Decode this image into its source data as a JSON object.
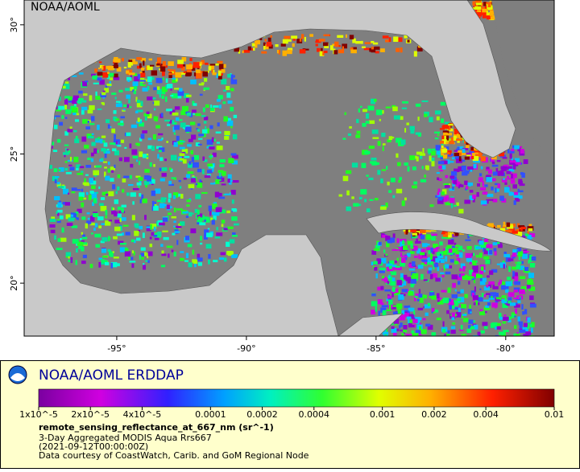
{
  "map": {
    "title": "NOAA/AOML",
    "xlim": [
      -98.57,
      -78.13
    ],
    "ylim": [
      17.95,
      30.96
    ],
    "lon_ticks": [
      {
        "value": -95,
        "label": "-95°"
      },
      {
        "value": -90,
        "label": "-90°"
      },
      {
        "value": -85,
        "label": "-85°"
      },
      {
        "value": -80,
        "label": "-80°"
      }
    ],
    "lat_ticks": [
      {
        "value": 20,
        "label": "20°"
      },
      {
        "value": 25,
        "label": "25°"
      },
      {
        "value": 30,
        "label": "30°"
      }
    ]
  },
  "legend": {
    "title": "NOAA/AOML ERDDAP",
    "colorbar": {
      "scale": "log",
      "lim": [
        1e-05,
        0.01
      ],
      "ticks": [
        {
          "value": 1e-05,
          "label": "1x10^-5"
        },
        {
          "value": 2e-05,
          "label": "2x10^-5"
        },
        {
          "value": 4e-05,
          "label": "4x10^-5"
        },
        0.0001,
        0.0002,
        0.0004,
        0.001,
        0.002,
        0.004,
        0.01
      ]
    },
    "variable": "remote_sensing_reflectance_at_667_nm (sr^-1)",
    "lines": [
      "3-Day Aggregated MODIS Aqua Rrs667",
      "(2021-09-12T00:00:00Z)",
      "Data courtesy of CoastWatch, Carib. and GoM Regional Node"
    ]
  }
}
